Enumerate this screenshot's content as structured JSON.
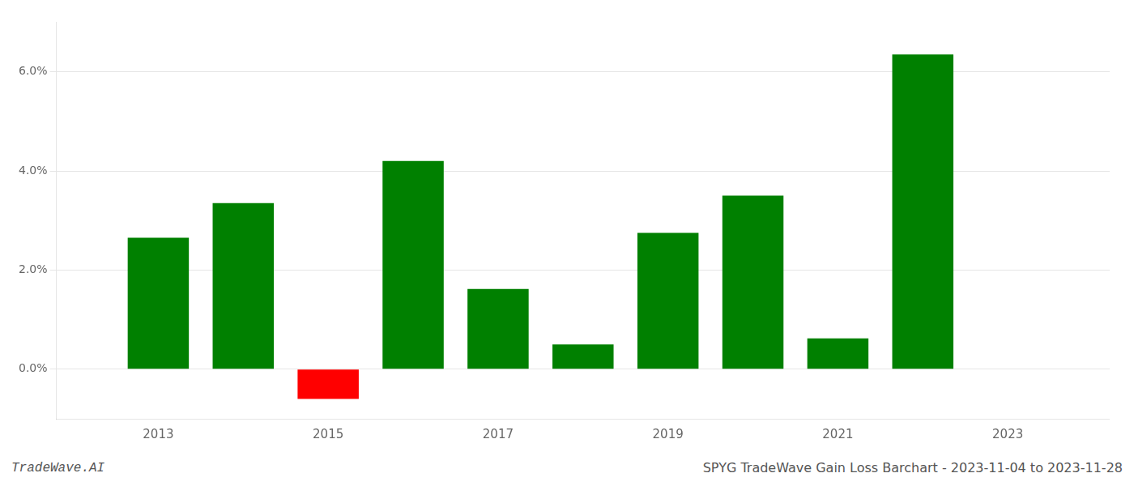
{
  "chart_data": {
    "type": "bar",
    "x": [
      2013,
      2014,
      2015,
      2016,
      2017,
      2018,
      2019,
      2020,
      2021,
      2022
    ],
    "values": [
      2.65,
      3.35,
      -0.6,
      4.2,
      1.62,
      0.5,
      2.75,
      3.5,
      0.62,
      6.35
    ],
    "colors": [
      "#008000",
      "#008000",
      "#ff0000",
      "#008000",
      "#008000",
      "#008000",
      "#008000",
      "#008000",
      "#008000",
      "#008000"
    ],
    "xlim": [
      2011.8,
      2024.2
    ],
    "xticks": [
      2013,
      2015,
      2017,
      2019,
      2021,
      2023
    ],
    "ylim": [
      -1.0,
      7.0
    ],
    "yticks": [
      {
        "value": 0.0,
        "label": "0.0%"
      },
      {
        "value": 2.0,
        "label": "2.0%"
      },
      {
        "value": 4.0,
        "label": "4.0%"
      },
      {
        "value": 6.0,
        "label": "6.0%"
      }
    ],
    "grid": true,
    "annotations": [
      "TradeWave.AI",
      "SPYG TradeWave Gain Loss Barchart - 2023-11-04 to 2023-11-28"
    ]
  }
}
